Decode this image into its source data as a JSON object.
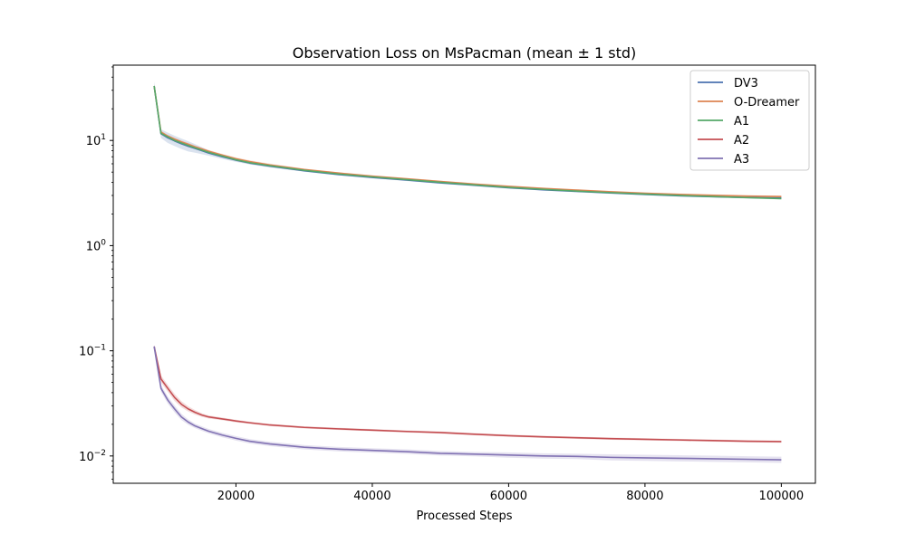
{
  "chart_data": {
    "type": "line",
    "title": "Observation Loss on MsPacman (mean ± 1 std)",
    "xlabel": "Processed Steps",
    "ylabel": "",
    "yscale": "log",
    "xlim": [
      2000,
      105000
    ],
    "ylim": [
      0.0055,
      52
    ],
    "xticks": [
      {
        "value": 20000,
        "label": "20000"
      },
      {
        "value": 40000,
        "label": "40000"
      },
      {
        "value": 60000,
        "label": "60000"
      },
      {
        "value": 80000,
        "label": "80000"
      },
      {
        "value": 100000,
        "label": "100000"
      }
    ],
    "yticks": [
      {
        "value": 0.01,
        "base": "10",
        "exp": "−2"
      },
      {
        "value": 0.1,
        "base": "10",
        "exp": "−1"
      },
      {
        "value": 1,
        "base": "10",
        "exp": "0"
      },
      {
        "value": 10,
        "base": "10",
        "exp": "1"
      }
    ],
    "legend": {
      "position": "upper right"
    },
    "grid": false,
    "x": [
      8000,
      9000,
      10000,
      11000,
      12000,
      13000,
      14000,
      15000,
      16000,
      18000,
      20000,
      22000,
      25000,
      30000,
      35000,
      40000,
      45000,
      50000,
      55000,
      60000,
      65000,
      70000,
      75000,
      80000,
      85000,
      90000,
      95000,
      100000
    ],
    "series": [
      {
        "name": "DV3",
        "color": "#4c72b0",
        "values": [
          33,
          11.6,
          10.6,
          9.9,
          9.3,
          8.8,
          8.4,
          8.0,
          7.6,
          7.0,
          6.5,
          6.1,
          5.7,
          5.15,
          4.75,
          4.45,
          4.2,
          3.95,
          3.75,
          3.55,
          3.4,
          3.28,
          3.17,
          3.07,
          2.98,
          2.92,
          2.87,
          2.84
        ],
        "band": [
          0.1,
          0.1,
          0.12,
          0.12,
          0.12,
          0.12,
          0.1,
          0.08,
          0.06,
          0.05,
          0.04,
          0.03,
          0.03,
          0.02,
          0.02,
          0.02,
          0.02,
          0.02,
          0.02,
          0.02,
          0.02,
          0.02,
          0.02,
          0.02,
          0.02,
          0.02,
          0.02,
          0.02
        ]
      },
      {
        "name": "O-Dreamer",
        "color": "#dd8452",
        "values": [
          33,
          12.0,
          11.0,
          10.3,
          9.7,
          9.2,
          8.7,
          8.3,
          7.9,
          7.25,
          6.7,
          6.3,
          5.85,
          5.3,
          4.9,
          4.58,
          4.32,
          4.07,
          3.85,
          3.66,
          3.5,
          3.37,
          3.25,
          3.15,
          3.07,
          3.01,
          2.96,
          2.93
        ],
        "band": [
          0.03,
          0.03,
          0.03,
          0.03,
          0.03,
          0.03,
          0.03,
          0.03,
          0.03,
          0.03,
          0.03,
          0.03,
          0.03,
          0.02,
          0.02,
          0.02,
          0.02,
          0.02,
          0.02,
          0.02,
          0.02,
          0.02,
          0.02,
          0.02,
          0.02,
          0.02,
          0.02,
          0.02
        ]
      },
      {
        "name": "A1",
        "color": "#55a868",
        "values": [
          33,
          11.7,
          10.8,
          10.0,
          9.45,
          8.95,
          8.5,
          8.1,
          7.7,
          7.1,
          6.55,
          6.15,
          5.75,
          5.2,
          4.8,
          4.5,
          4.25,
          4.0,
          3.78,
          3.58,
          3.43,
          3.3,
          3.19,
          3.09,
          3.0,
          2.93,
          2.86,
          2.8
        ],
        "band": [
          0.03,
          0.03,
          0.03,
          0.03,
          0.03,
          0.03,
          0.03,
          0.03,
          0.03,
          0.03,
          0.03,
          0.03,
          0.03,
          0.02,
          0.02,
          0.02,
          0.02,
          0.02,
          0.02,
          0.02,
          0.02,
          0.02,
          0.02,
          0.02,
          0.02,
          0.02,
          0.02,
          0.02
        ]
      },
      {
        "name": "A2",
        "color": "#c44e52",
        "values": [
          0.11,
          0.054,
          0.044,
          0.036,
          0.031,
          0.028,
          0.026,
          0.0245,
          0.0235,
          0.0225,
          0.0215,
          0.0207,
          0.0197,
          0.0187,
          0.0181,
          0.0176,
          0.0171,
          0.0167,
          0.0161,
          0.0156,
          0.0152,
          0.0149,
          0.0146,
          0.0144,
          0.0142,
          0.014,
          0.0138,
          0.0137
        ],
        "band": [
          0.03,
          0.08,
          0.08,
          0.08,
          0.07,
          0.06,
          0.05,
          0.04,
          0.035,
          0.03,
          0.03,
          0.025,
          0.025,
          0.025,
          0.025,
          0.025,
          0.025,
          0.025,
          0.025,
          0.025,
          0.025,
          0.025,
          0.025,
          0.025,
          0.025,
          0.025,
          0.025,
          0.025
        ]
      },
      {
        "name": "A3",
        "color": "#8172b3",
        "values": [
          0.11,
          0.044,
          0.034,
          0.028,
          0.0235,
          0.021,
          0.0193,
          0.0182,
          0.0172,
          0.0158,
          0.0147,
          0.0138,
          0.013,
          0.0121,
          0.0116,
          0.0113,
          0.011,
          0.0106,
          0.0104,
          0.0102,
          0.01,
          0.0099,
          0.0097,
          0.0096,
          0.0095,
          0.0094,
          0.0093,
          0.0092
        ],
        "band": [
          0.03,
          0.08,
          0.08,
          0.08,
          0.07,
          0.06,
          0.05,
          0.05,
          0.05,
          0.05,
          0.05,
          0.05,
          0.05,
          0.05,
          0.05,
          0.05,
          0.05,
          0.05,
          0.05,
          0.06,
          0.06,
          0.06,
          0.07,
          0.07,
          0.07,
          0.07,
          0.07,
          0.07
        ]
      }
    ]
  }
}
